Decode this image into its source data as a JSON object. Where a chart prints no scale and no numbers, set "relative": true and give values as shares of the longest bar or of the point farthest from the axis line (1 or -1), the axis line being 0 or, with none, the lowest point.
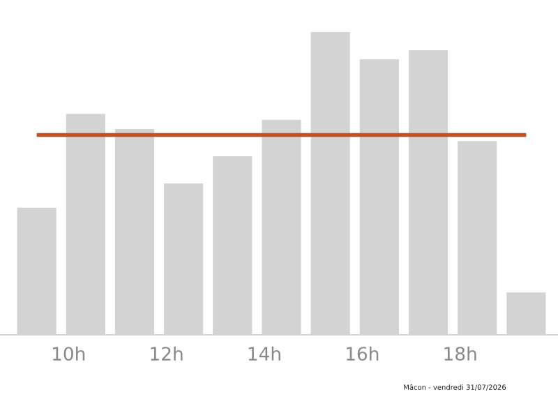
{
  "chart_data": {
    "type": "bar",
    "relative": true,
    "x": [
      9.35,
      10.35,
      11.35,
      12.35,
      13.35,
      14.35,
      15.35,
      16.35,
      17.35,
      18.35,
      19.35
    ],
    "values": [
      0.42,
      0.73,
      0.68,
      0.5,
      0.59,
      0.71,
      1,
      0.91,
      0.94,
      0.64,
      0.14
    ],
    "color": "#d3d3d3",
    "xlim": [
      8.6,
      20.0
    ],
    "xticks": [
      {
        "value": 10,
        "label": "10h"
      },
      {
        "value": 12,
        "label": "12h"
      },
      {
        "value": 14,
        "label": "14h"
      },
      {
        "value": 16,
        "label": "16h"
      },
      {
        "value": 18,
        "label": "18h"
      }
    ],
    "ref_lines": [
      {
        "axis": "y",
        "value": 0.66,
        "color": "#c8501e"
      }
    ],
    "annotations": [
      "Mâcon - vendredi 31/07/2026"
    ],
    "grid": false,
    "legend": false
  }
}
